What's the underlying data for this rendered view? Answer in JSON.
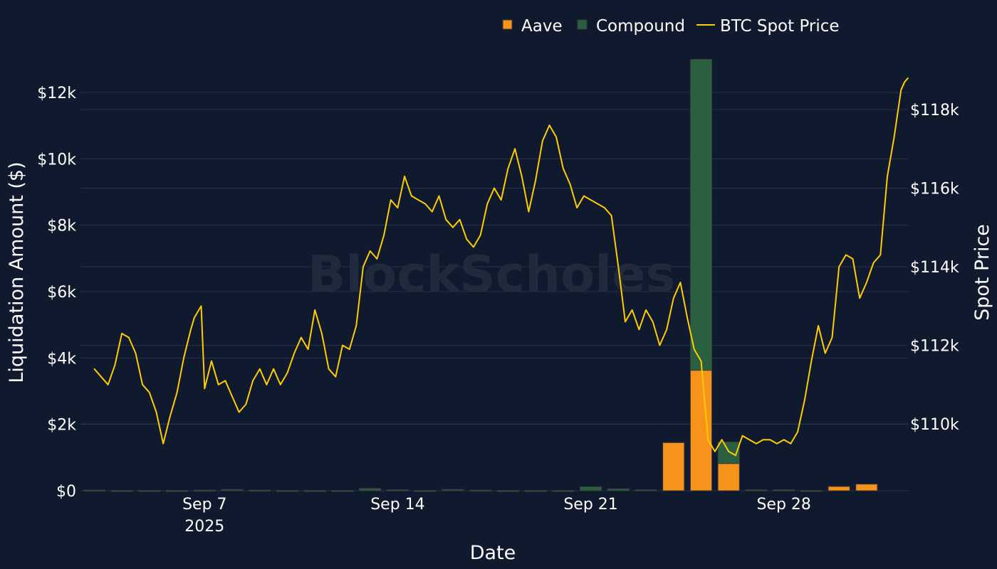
{
  "watermark": "BlockScholes",
  "colors": {
    "background": "#0f1a2e",
    "grid": "#24314d",
    "aave": "#f7931a",
    "compound": "#2a5f3f",
    "btc": "#ffcc00"
  },
  "chart_data": {
    "type": "bar",
    "xlabel": "Date",
    "ylabel_left": "Liquidation Amount ($)",
    "ylabel_right": "Spot Price",
    "x_range": [
      "2025-09-02 12:00",
      "2025-10-02 12:00"
    ],
    "y_left_range": [
      0,
      13500
    ],
    "y_right_range": [
      108300,
      119700
    ],
    "grid": true,
    "legend_position": "top",
    "legend": [
      {
        "name": "Aave",
        "kind": "bar",
        "color": "#f7931a"
      },
      {
        "name": "Compound",
        "kind": "bar",
        "color": "#2a5f3f"
      },
      {
        "name": "BTC Spot Price",
        "kind": "line",
        "color": "#ffcc00"
      }
    ],
    "x_ticks": [
      {
        "date": "2025-09-07",
        "label": "Sep 7",
        "sublabel": "2025"
      },
      {
        "date": "2025-09-14",
        "label": "Sep 14",
        "sublabel": ""
      },
      {
        "date": "2025-09-21",
        "label": "Sep 21",
        "sublabel": ""
      },
      {
        "date": "2025-09-28",
        "label": "Sep 28",
        "sublabel": ""
      }
    ],
    "y_left_ticks": [
      {
        "value": 0,
        "label": "$0"
      },
      {
        "value": 2000,
        "label": "$2k"
      },
      {
        "value": 4000,
        "label": "$4k"
      },
      {
        "value": 6000,
        "label": "$6k"
      },
      {
        "value": 8000,
        "label": "$8k"
      },
      {
        "value": 10000,
        "label": "$10k"
      },
      {
        "value": 12000,
        "label": "$12k"
      }
    ],
    "y_right_ticks": [
      {
        "value": 110000,
        "label": "$110k"
      },
      {
        "value": 112000,
        "label": "$112k"
      },
      {
        "value": 114000,
        "label": "$114k"
      },
      {
        "value": 116000,
        "label": "$116k"
      },
      {
        "value": 118000,
        "label": "$118k"
      }
    ],
    "bars": {
      "dates": [
        "2025-09-03",
        "2025-09-04",
        "2025-09-05",
        "2025-09-06",
        "2025-09-07",
        "2025-09-08",
        "2025-09-09",
        "2025-09-10",
        "2025-09-11",
        "2025-09-12",
        "2025-09-13",
        "2025-09-14",
        "2025-09-15",
        "2025-09-16",
        "2025-09-17",
        "2025-09-18",
        "2025-09-19",
        "2025-09-20",
        "2025-09-21",
        "2025-09-22",
        "2025-09-23",
        "2025-09-24",
        "2025-09-25",
        "2025-09-26",
        "2025-09-27",
        "2025-09-28",
        "2025-09-29",
        "2025-09-30",
        "2025-10-01",
        "2025-10-02"
      ],
      "series": [
        {
          "name": "Aave",
          "values": [
            0,
            0,
            0,
            0,
            0,
            0,
            0,
            0,
            0,
            0,
            0,
            0,
            0,
            0,
            0,
            0,
            0,
            0,
            0,
            0,
            0,
            1450,
            3630,
            820,
            0,
            0,
            0,
            130,
            200,
            0
          ]
        },
        {
          "name": "Compound",
          "values": [
            20,
            10,
            10,
            10,
            20,
            40,
            20,
            10,
            10,
            10,
            70,
            30,
            10,
            40,
            20,
            10,
            10,
            10,
            120,
            60,
            30,
            0,
            9370,
            650,
            30,
            30,
            10,
            0,
            0,
            0
          ]
        }
      ]
    },
    "btc": {
      "name": "BTC Spot Price",
      "points": [
        [
          "2025-09-03 00:00",
          111400
        ],
        [
          "2025-09-03 12:00",
          111000
        ],
        [
          "2025-09-03 18:00",
          111500
        ],
        [
          "2025-09-04 00:00",
          112300
        ],
        [
          "2025-09-04 06:00",
          112200
        ],
        [
          "2025-09-04 12:00",
          111800
        ],
        [
          "2025-09-04 18:00",
          111000
        ],
        [
          "2025-09-05 00:00",
          110800
        ],
        [
          "2025-09-05 06:00",
          110300
        ],
        [
          "2025-09-05 12:00",
          109500
        ],
        [
          "2025-09-05 18:00",
          110200
        ],
        [
          "2025-09-06 00:00",
          110800
        ],
        [
          "2025-09-06 06:00",
          111700
        ],
        [
          "2025-09-06 12:00",
          112400
        ],
        [
          "2025-09-06 15:00",
          112700
        ],
        [
          "2025-09-06 21:00",
          113000
        ],
        [
          "2025-09-07 00:00",
          110900
        ],
        [
          "2025-09-07 06:00",
          111600
        ],
        [
          "2025-09-07 12:00",
          111000
        ],
        [
          "2025-09-07 18:00",
          111100
        ],
        [
          "2025-09-08 00:00",
          110700
        ],
        [
          "2025-09-08 06:00",
          110300
        ],
        [
          "2025-09-08 12:00",
          110500
        ],
        [
          "2025-09-08 18:00",
          111100
        ],
        [
          "2025-09-09 00:00",
          111400
        ],
        [
          "2025-09-09 06:00",
          111000
        ],
        [
          "2025-09-09 12:00",
          111400
        ],
        [
          "2025-09-09 18:00",
          111000
        ],
        [
          "2025-09-10 00:00",
          111300
        ],
        [
          "2025-09-10 06:00",
          111800
        ],
        [
          "2025-09-10 12:00",
          112200
        ],
        [
          "2025-09-10 18:00",
          111900
        ],
        [
          "2025-09-11 00:00",
          112900
        ],
        [
          "2025-09-11 06:00",
          112300
        ],
        [
          "2025-09-11 12:00",
          111400
        ],
        [
          "2025-09-11 18:00",
          111200
        ],
        [
          "2025-09-12 00:00",
          112000
        ],
        [
          "2025-09-12 06:00",
          111900
        ],
        [
          "2025-09-12 12:00",
          112500
        ],
        [
          "2025-09-12 18:00",
          114000
        ],
        [
          "2025-09-13 00:00",
          114400
        ],
        [
          "2025-09-13 06:00",
          114200
        ],
        [
          "2025-09-13 12:00",
          114800
        ],
        [
          "2025-09-13 18:00",
          115700
        ],
        [
          "2025-09-14 00:00",
          115500
        ],
        [
          "2025-09-14 06:00",
          116300
        ],
        [
          "2025-09-14 12:00",
          115800
        ],
        [
          "2025-09-14 18:00",
          115700
        ],
        [
          "2025-09-15 00:00",
          115600
        ],
        [
          "2025-09-15 06:00",
          115400
        ],
        [
          "2025-09-15 12:00",
          115800
        ],
        [
          "2025-09-15 18:00",
          115200
        ],
        [
          "2025-09-16 00:00",
          115000
        ],
        [
          "2025-09-16 06:00",
          115200
        ],
        [
          "2025-09-16 12:00",
          114700
        ],
        [
          "2025-09-16 18:00",
          114500
        ],
        [
          "2025-09-17 00:00",
          114800
        ],
        [
          "2025-09-17 06:00",
          115600
        ],
        [
          "2025-09-17 12:00",
          116000
        ],
        [
          "2025-09-17 18:00",
          115700
        ],
        [
          "2025-09-18 00:00",
          116500
        ],
        [
          "2025-09-18 06:00",
          117000
        ],
        [
          "2025-09-18 12:00",
          116300
        ],
        [
          "2025-09-18 18:00",
          115400
        ],
        [
          "2025-09-19 00:00",
          116200
        ],
        [
          "2025-09-19 06:00",
          117200
        ],
        [
          "2025-09-19 12:00",
          117600
        ],
        [
          "2025-09-19 18:00",
          117300
        ],
        [
          "2025-09-20 00:00",
          116500
        ],
        [
          "2025-09-20 06:00",
          116100
        ],
        [
          "2025-09-20 12:00",
          115500
        ],
        [
          "2025-09-20 18:00",
          115800
        ],
        [
          "2025-09-21 00:00",
          115700
        ],
        [
          "2025-09-21 06:00",
          115600
        ],
        [
          "2025-09-21 12:00",
          115500
        ],
        [
          "2025-09-21 18:00",
          115300
        ],
        [
          "2025-09-22 00:00",
          114000
        ],
        [
          "2025-09-22 06:00",
          112600
        ],
        [
          "2025-09-22 12:00",
          112900
        ],
        [
          "2025-09-22 18:00",
          112400
        ],
        [
          "2025-09-23 00:00",
          112900
        ],
        [
          "2025-09-23 06:00",
          112600
        ],
        [
          "2025-09-23 12:00",
          112000
        ],
        [
          "2025-09-23 18:00",
          112400
        ],
        [
          "2025-09-24 00:00",
          113200
        ],
        [
          "2025-09-24 06:00",
          113600
        ],
        [
          "2025-09-24 12:00",
          112700
        ],
        [
          "2025-09-24 18:00",
          111900
        ],
        [
          "2025-09-25 00:00",
          111600
        ],
        [
          "2025-09-25 06:00",
          109600
        ],
        [
          "2025-09-25 12:00",
          109300
        ],
        [
          "2025-09-25 18:00",
          109600
        ],
        [
          "2025-09-26 00:00",
          109300
        ],
        [
          "2025-09-26 06:00",
          109200
        ],
        [
          "2025-09-26 12:00",
          109700
        ],
        [
          "2025-09-26 18:00",
          109600
        ],
        [
          "2025-09-27 00:00",
          109500
        ],
        [
          "2025-09-27 06:00",
          109600
        ],
        [
          "2025-09-27 12:00",
          109600
        ],
        [
          "2025-09-27 18:00",
          109500
        ],
        [
          "2025-09-28 00:00",
          109600
        ],
        [
          "2025-09-28 06:00",
          109500
        ],
        [
          "2025-09-28 12:00",
          109800
        ],
        [
          "2025-09-28 18:00",
          110600
        ],
        [
          "2025-09-29 00:00",
          111600
        ],
        [
          "2025-09-29 06:00",
          112500
        ],
        [
          "2025-09-29 12:00",
          111800
        ],
        [
          "2025-09-29 18:00",
          112200
        ],
        [
          "2025-09-30 00:00",
          114000
        ],
        [
          "2025-09-30 06:00",
          114300
        ],
        [
          "2025-09-30 12:00",
          114200
        ],
        [
          "2025-09-30 18:00",
          113200
        ],
        [
          "2025-10-01 00:00",
          113600
        ],
        [
          "2025-10-01 06:00",
          114100
        ],
        [
          "2025-10-01 12:00",
          114300
        ],
        [
          "2025-10-01 18:00",
          116300
        ],
        [
          "2025-10-02 00:00",
          117300
        ],
        [
          "2025-10-02 06:00",
          118500
        ],
        [
          "2025-10-02 09:00",
          118700
        ],
        [
          "2025-10-02 12:00",
          118800
        ]
      ]
    }
  }
}
